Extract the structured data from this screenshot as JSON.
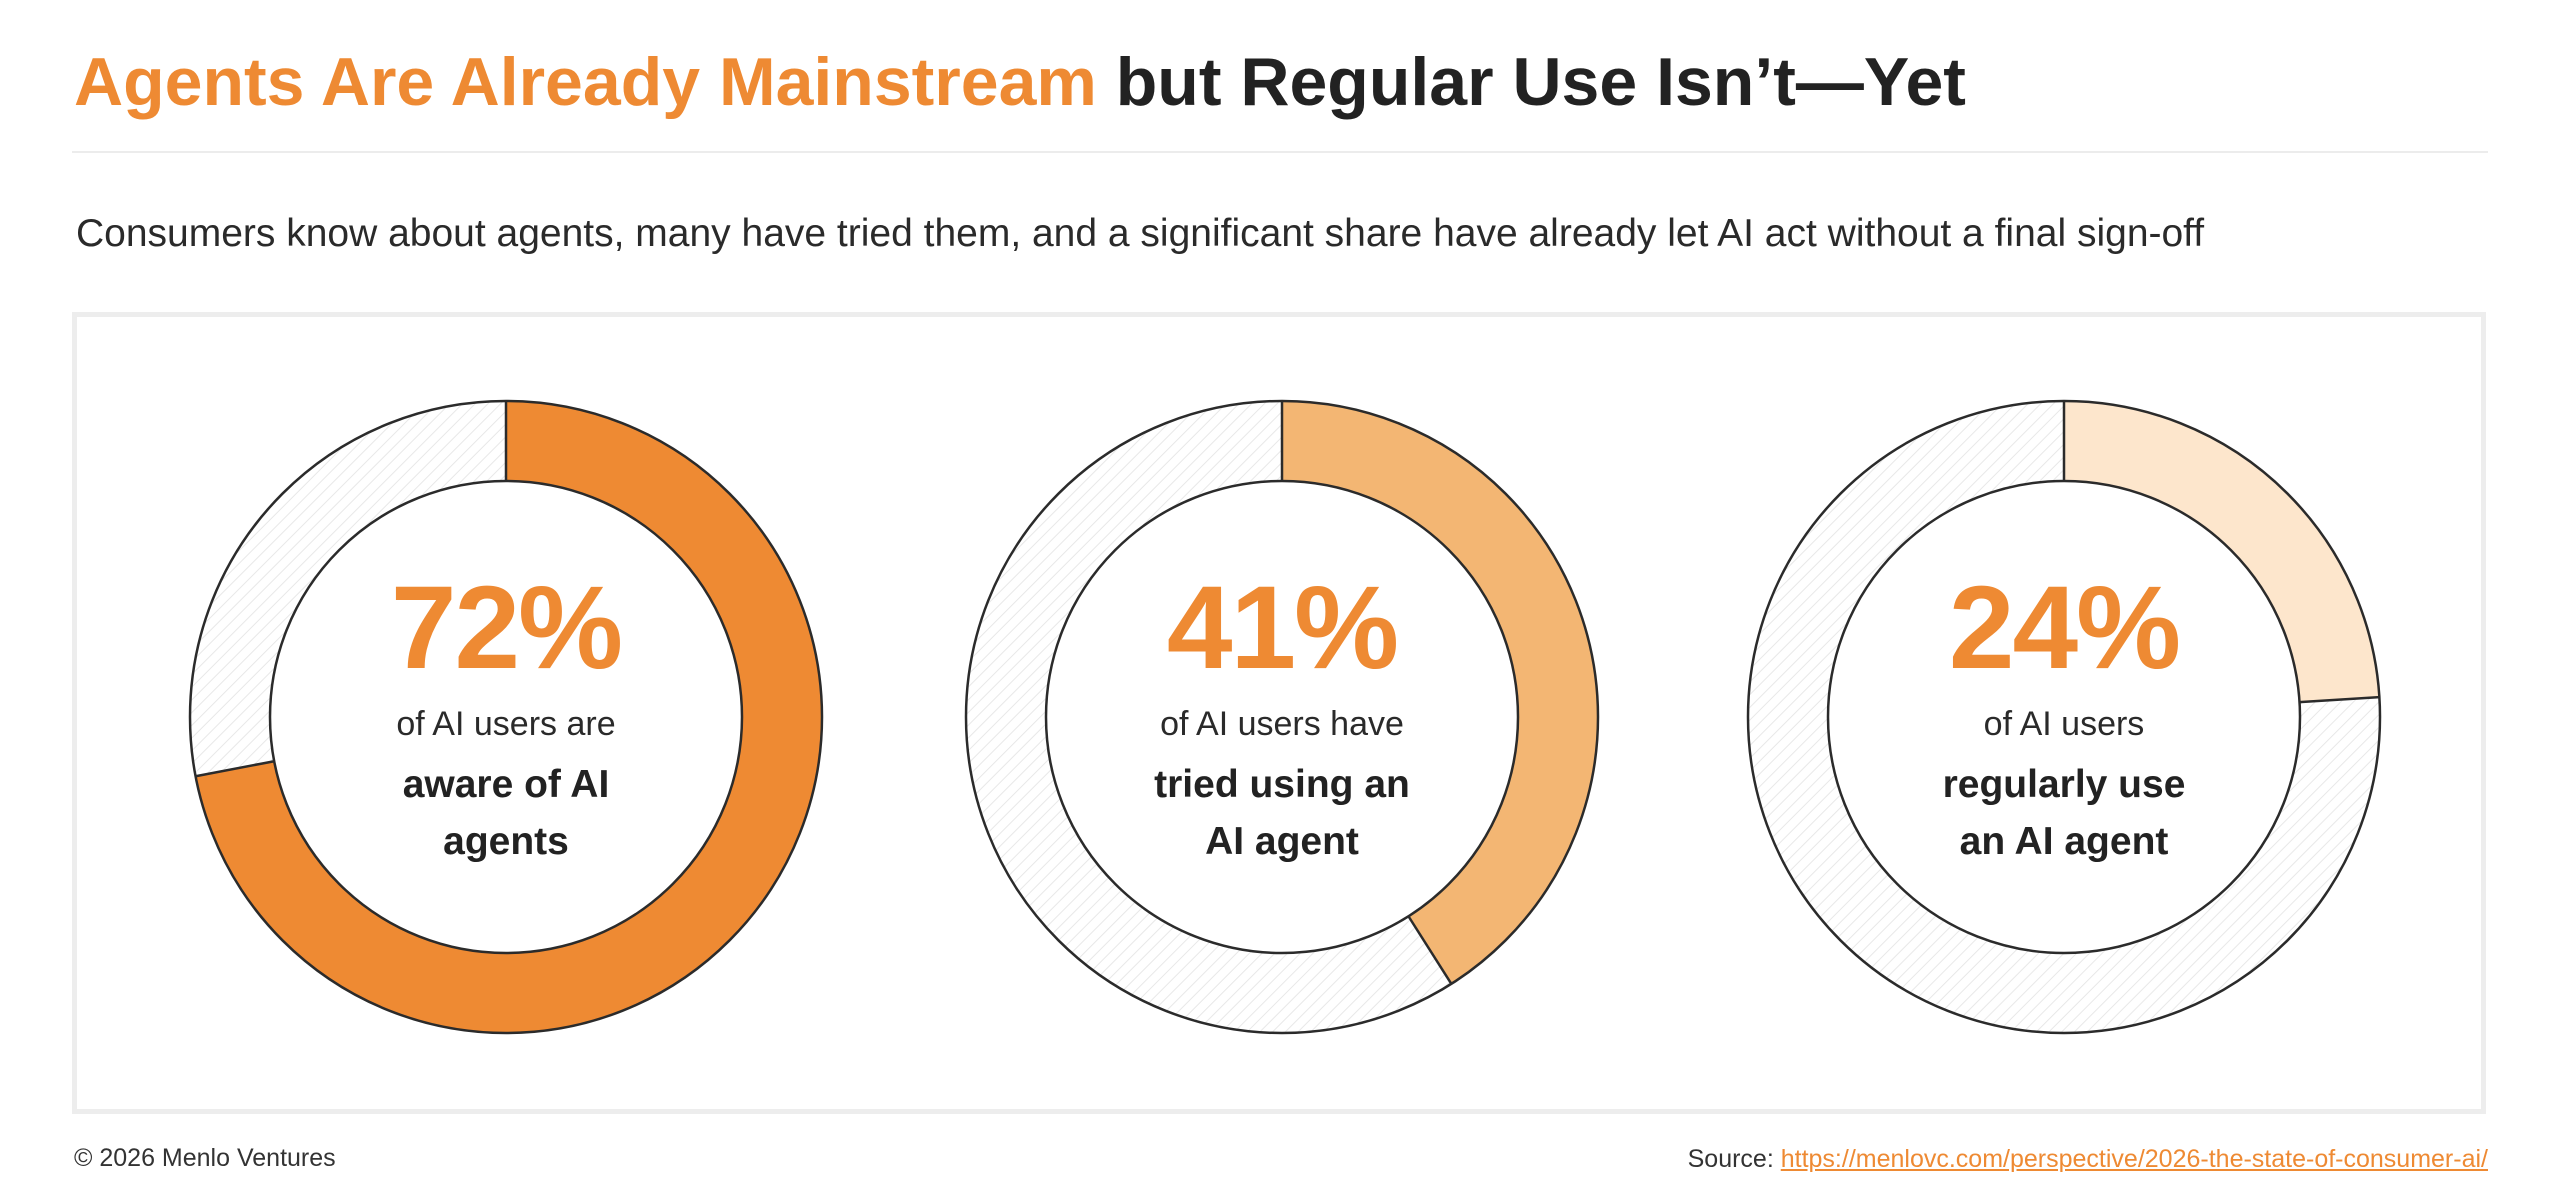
{
  "header": {
    "title_accent": "Agents Are Already Mainstream",
    "title_rest": "but Regular Use Isn’t—Yet",
    "subtitle": "Consumers know about agents, many have tried them, and a significant share have already let AI act without a final sign-off"
  },
  "colors": {
    "accent": "#ee8a33",
    "donut_fills": [
      "#ee8a33",
      "#f3b673",
      "#fde6cc"
    ],
    "remainder_hatch": "#e6e6e6",
    "outline": "#2b2b2b"
  },
  "chart_data": [
    {
      "type": "pie",
      "style": "donut",
      "value": 72,
      "unit": "%",
      "label_value": "72%",
      "label_lead": "of AI users are",
      "label_emph": [
        "aware of AI",
        "agents"
      ]
    },
    {
      "type": "pie",
      "style": "donut",
      "value": 41,
      "unit": "%",
      "label_value": "41%",
      "label_lead": "of AI users have",
      "label_emph": [
        "tried using an",
        "AI agent"
      ]
    },
    {
      "type": "pie",
      "style": "donut",
      "value": 24,
      "unit": "%",
      "label_value": "24%",
      "label_lead": "of AI users",
      "label_emph": [
        "regularly use",
        "an AI agent"
      ]
    }
  ],
  "footer": {
    "copyright": "© 2026 Menlo Ventures",
    "source_prefix": "Source:",
    "source_link": "https://menlovc.com/perspective/2026-the-state-of-consumer-ai/"
  }
}
